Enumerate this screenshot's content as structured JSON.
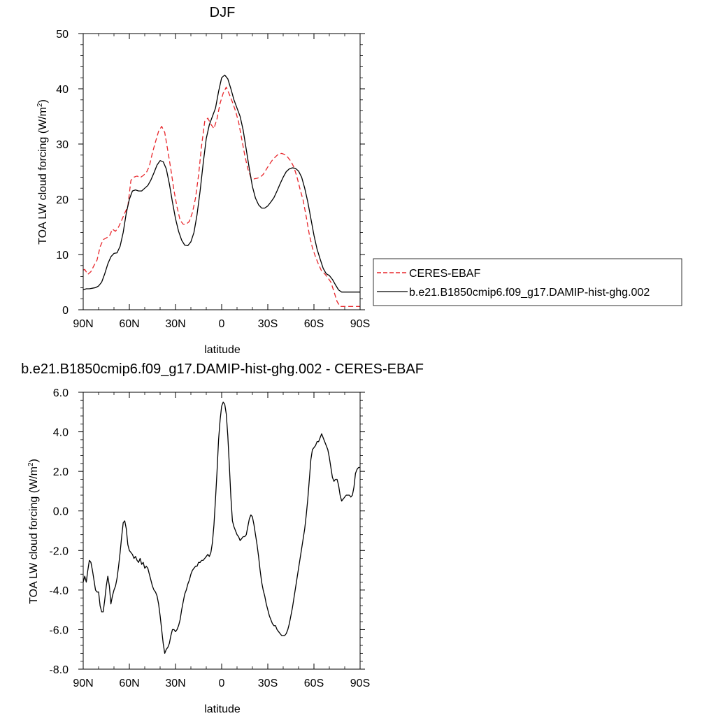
{
  "chart_data": [
    {
      "type": "line",
      "title": "DJF",
      "xlabel": "latitude",
      "ylabel": "TOA LW cloud forcing (W/m",
      "ylabel_sup": "2",
      "ylabel_close": ")",
      "xlim": [
        90,
        -90
      ],
      "ylim": [
        0,
        50
      ],
      "xticks": [
        90,
        60,
        30,
        0,
        -30,
        -60,
        -90
      ],
      "xticklabels": [
        "90N",
        "60N",
        "30N",
        "0",
        "30S",
        "60S",
        "90S"
      ],
      "yticks": [
        0,
        10,
        20,
        30,
        40,
        50
      ],
      "yticklabels": [
        "0",
        "10",
        "20",
        "30",
        "40",
        "50"
      ],
      "grid": false,
      "legend_position": "right, outside plot",
      "series": [
        {
          "name": "CERES-EBAF",
          "color": "#e8262b",
          "dash": "dashed",
          "x": [
            90,
            89,
            87,
            85,
            83,
            81,
            79,
            77,
            75,
            73,
            71,
            69,
            67,
            65,
            63,
            61,
            59,
            57,
            55,
            53,
            51,
            49,
            47,
            45,
            43,
            41,
            39,
            37,
            35,
            33,
            31,
            29,
            27,
            25,
            23,
            21,
            19,
            17,
            15,
            13,
            11,
            9,
            7,
            5,
            3,
            1,
            -1,
            -3,
            -5,
            -7,
            -9,
            -11,
            -13,
            -15,
            -17,
            -19,
            -21,
            -23,
            -25,
            -27,
            -29,
            -31,
            -33,
            -35,
            -37,
            -39,
            -41,
            -43,
            -45,
            -47,
            -49,
            -51,
            -53,
            -55,
            -57,
            -59,
            -61,
            -63,
            -65,
            -67,
            -69,
            -71,
            -73,
            -75,
            -77,
            -79,
            -81,
            -83,
            -85,
            -87,
            -89,
            -90
          ],
          "y": [
            7.2,
            7.3,
            6.4,
            6.9,
            8.0,
            9.0,
            11.4,
            12.7,
            13.0,
            13.3,
            14.6,
            14.2,
            15.0,
            16.2,
            17.5,
            18.7,
            23.4,
            24.0,
            24.2,
            23.9,
            24.3,
            24.8,
            26.0,
            28.4,
            30.4,
            32.3,
            33.2,
            32.1,
            28.8,
            25.4,
            21.6,
            18.6,
            16.2,
            15.5,
            15.5,
            16.0,
            17.6,
            20.2,
            24.4,
            29.8,
            34.1,
            34.7,
            33.6,
            32.8,
            34.6,
            37.4,
            39.2,
            40.3,
            39.0,
            37.6,
            36.0,
            34.0,
            31.0,
            28.0,
            25.5,
            24.0,
            23.7,
            23.8,
            24.0,
            24.5,
            25.4,
            26.3,
            27.1,
            27.7,
            28.2,
            28.3,
            28.1,
            27.6,
            26.9,
            25.8,
            24.0,
            21.8,
            19.8,
            16.8,
            13.6,
            11.2,
            9.6,
            8.2,
            7.0,
            6.5,
            5.8,
            5.0,
            3.3,
            1.5,
            0.6,
            0.6,
            0.6,
            0.6,
            0.6,
            0.6,
            0.6,
            0.6
          ]
        },
        {
          "name": "b.e21.B1850cmip6.f09_g17.DAMIP-hist-ghg.002",
          "color": "#000000",
          "dash": "solid",
          "x": [
            90,
            88,
            86,
            84,
            82,
            80,
            78,
            76,
            74,
            72,
            70,
            68,
            66,
            64,
            62,
            60,
            58,
            56,
            54,
            52,
            50,
            48,
            46,
            44,
            42,
            40,
            38,
            36,
            34,
            32,
            30,
            28,
            26,
            24,
            22,
            20,
            18,
            16,
            14,
            12,
            10,
            8,
            6,
            4,
            2,
            0,
            -2,
            -4,
            -6,
            -8,
            -10,
            -12,
            -14,
            -16,
            -18,
            -20,
            -22,
            -24,
            -26,
            -28,
            -30,
            -32,
            -34,
            -36,
            -38,
            -40,
            -42,
            -44,
            -46,
            -48,
            -50,
            -52,
            -54,
            -56,
            -58,
            -60,
            -62,
            -64,
            -66,
            -68,
            -70,
            -72,
            -74,
            -76,
            -78,
            -80,
            -82,
            -84,
            -86,
            -88,
            -90
          ],
          "y": [
            3.6,
            3.8,
            3.8,
            3.9,
            4.0,
            4.3,
            5.0,
            6.5,
            8.3,
            9.6,
            10.2,
            10.3,
            11.5,
            14.0,
            17.5,
            20.0,
            21.5,
            21.7,
            21.5,
            21.5,
            22.0,
            22.5,
            23.5,
            24.8,
            26.2,
            27.0,
            26.8,
            25.5,
            22.8,
            19.5,
            16.5,
            14.2,
            12.6,
            11.7,
            11.6,
            12.3,
            14.0,
            17.2,
            21.5,
            26.5,
            31.0,
            33.5,
            35.0,
            36.5,
            39.5,
            42.0,
            42.5,
            41.8,
            40.0,
            38.0,
            36.5,
            35.0,
            32.5,
            29.0,
            25.5,
            22.3,
            20.2,
            19.0,
            18.4,
            18.4,
            18.8,
            19.5,
            20.3,
            21.5,
            22.8,
            24.0,
            25.0,
            25.5,
            25.7,
            25.6,
            25.1,
            24.0,
            22.0,
            19.5,
            16.5,
            13.5,
            11.0,
            9.2,
            7.5,
            6.5,
            6.2,
            5.5,
            4.5,
            3.6,
            3.2,
            3.2,
            3.2,
            3.2,
            3.2,
            3.2,
            3.2
          ]
        }
      ]
    },
    {
      "type": "line",
      "title": "b.e21.B1850cmip6.f09_g17.DAMIP-hist-ghg.002 - CERES-EBAF",
      "xlabel": "latitude",
      "ylabel": "TOA LW cloud forcing (W/m",
      "ylabel_sup": "2",
      "ylabel_close": ")",
      "xlim": [
        90,
        -90
      ],
      "ylim": [
        -8,
        6
      ],
      "xticks": [
        90,
        60,
        30,
        0,
        -30,
        -60,
        -90
      ],
      "xticklabels": [
        "90N",
        "60N",
        "30N",
        "0",
        "30S",
        "60S",
        "90S"
      ],
      "yticks": [
        -8,
        -6,
        -4,
        -2,
        0,
        2,
        4,
        6
      ],
      "yticklabels": [
        "-8.0",
        "-6.0",
        "-4.0",
        "-2.0",
        "0.0",
        "2.0",
        "4.0",
        "6.0"
      ],
      "grid": false,
      "series": [
        {
          "color": "#000000",
          "dash": "solid",
          "x": [
            90,
            89,
            88,
            87,
            86,
            85,
            84,
            83,
            82,
            81,
            80,
            79,
            78,
            77,
            76,
            75,
            74,
            73,
            72,
            71,
            70,
            69,
            68,
            67,
            66,
            65,
            64,
            63,
            62,
            61,
            60,
            59,
            58,
            57,
            56,
            55,
            54,
            53,
            52,
            51,
            50,
            49,
            48,
            47,
            46,
            45,
            44,
            43,
            42,
            41,
            40,
            39,
            38,
            37,
            36,
            35,
            34,
            33,
            32,
            31,
            30,
            29,
            28,
            27,
            26,
            25,
            24,
            23,
            22,
            21,
            20,
            19,
            18,
            17,
            16,
            15,
            14,
            13,
            12,
            11,
            10,
            9,
            8,
            7,
            6,
            5,
            4,
            3,
            2,
            1,
            0,
            -1,
            -2,
            -3,
            -4,
            -5,
            -6,
            -7,
            -8,
            -9,
            -10,
            -11,
            -12,
            -13,
            -14,
            -15,
            -16,
            -17,
            -18,
            -19,
            -20,
            -21,
            -22,
            -23,
            -24,
            -25,
            -26,
            -27,
            -28,
            -29,
            -30,
            -31,
            -32,
            -33,
            -34,
            -35,
            -36,
            -37,
            -38,
            -39,
            -40,
            -41,
            -42,
            -43,
            -44,
            -45,
            -46,
            -47,
            -48,
            -49,
            -50,
            -51,
            -52,
            -53,
            -54,
            -55,
            -56,
            -57,
            -58,
            -59,
            -60,
            -61,
            -62,
            -63,
            -64,
            -65,
            -66,
            -67,
            -68,
            -69,
            -70,
            -71,
            -72,
            -73,
            -74,
            -75,
            -76,
            -77,
            -78,
            -79,
            -80,
            -81,
            -82,
            -83,
            -84,
            -85,
            -86,
            -87,
            -88,
            -89,
            -90
          ],
          "y": [
            -3.6,
            -3.3,
            -3.6,
            -3.0,
            -2.5,
            -2.6,
            -3.0,
            -3.5,
            -4.0,
            -4.1,
            -4.1,
            -4.8,
            -5.1,
            -5.1,
            -4.5,
            -3.8,
            -3.3,
            -3.8,
            -4.7,
            -4.3,
            -4.0,
            -3.8,
            -3.4,
            -2.8,
            -2.1,
            -1.3,
            -0.6,
            -0.5,
            -0.9,
            -1.7,
            -2.0,
            -2.1,
            -2.2,
            -2.4,
            -2.3,
            -2.5,
            -2.6,
            -2.4,
            -2.7,
            -2.6,
            -2.9,
            -2.8,
            -2.9,
            -3.2,
            -3.5,
            -3.8,
            -4.0,
            -4.1,
            -4.3,
            -4.7,
            -5.3,
            -6.0,
            -6.7,
            -7.2,
            -7.0,
            -6.9,
            -6.7,
            -6.3,
            -6.0,
            -6.0,
            -6.1,
            -6.0,
            -5.8,
            -5.5,
            -5.0,
            -4.6,
            -4.2,
            -4.0,
            -3.7,
            -3.5,
            -3.2,
            -3.0,
            -2.9,
            -2.8,
            -2.8,
            -2.6,
            -2.6,
            -2.5,
            -2.5,
            -2.4,
            -2.3,
            -2.2,
            -2.3,
            -2.1,
            -1.6,
            -0.7,
            0.6,
            2.0,
            3.6,
            4.6,
            5.3,
            5.5,
            5.4,
            4.9,
            3.8,
            2.3,
            0.7,
            -0.5,
            -0.8,
            -1.0,
            -1.2,
            -1.3,
            -1.5,
            -1.4,
            -1.3,
            -1.3,
            -1.2,
            -0.8,
            -0.4,
            -0.2,
            -0.3,
            -0.7,
            -1.2,
            -1.7,
            -2.3,
            -3.0,
            -3.6,
            -4.0,
            -4.3,
            -4.7,
            -5.0,
            -5.3,
            -5.5,
            -5.7,
            -5.8,
            -5.8,
            -6.0,
            -6.1,
            -6.2,
            -6.3,
            -6.3,
            -6.3,
            -6.2,
            -6.0,
            -5.7,
            -5.3,
            -4.9,
            -4.4,
            -3.9,
            -3.4,
            -2.9,
            -2.4,
            -1.9,
            -1.4,
            -0.9,
            -0.2,
            0.6,
            1.6,
            2.6,
            3.1,
            3.2,
            3.3,
            3.5,
            3.5,
            3.7,
            3.9,
            3.7,
            3.5,
            3.3,
            3.1,
            2.7,
            2.2,
            1.7,
            1.5,
            1.6,
            1.6,
            1.3,
            0.8,
            0.5,
            0.6,
            0.7,
            0.8,
            0.8,
            0.8,
            0.7,
            0.8,
            1.2,
            1.9,
            2.1,
            2.2,
            2.2
          ]
        }
      ]
    }
  ]
}
